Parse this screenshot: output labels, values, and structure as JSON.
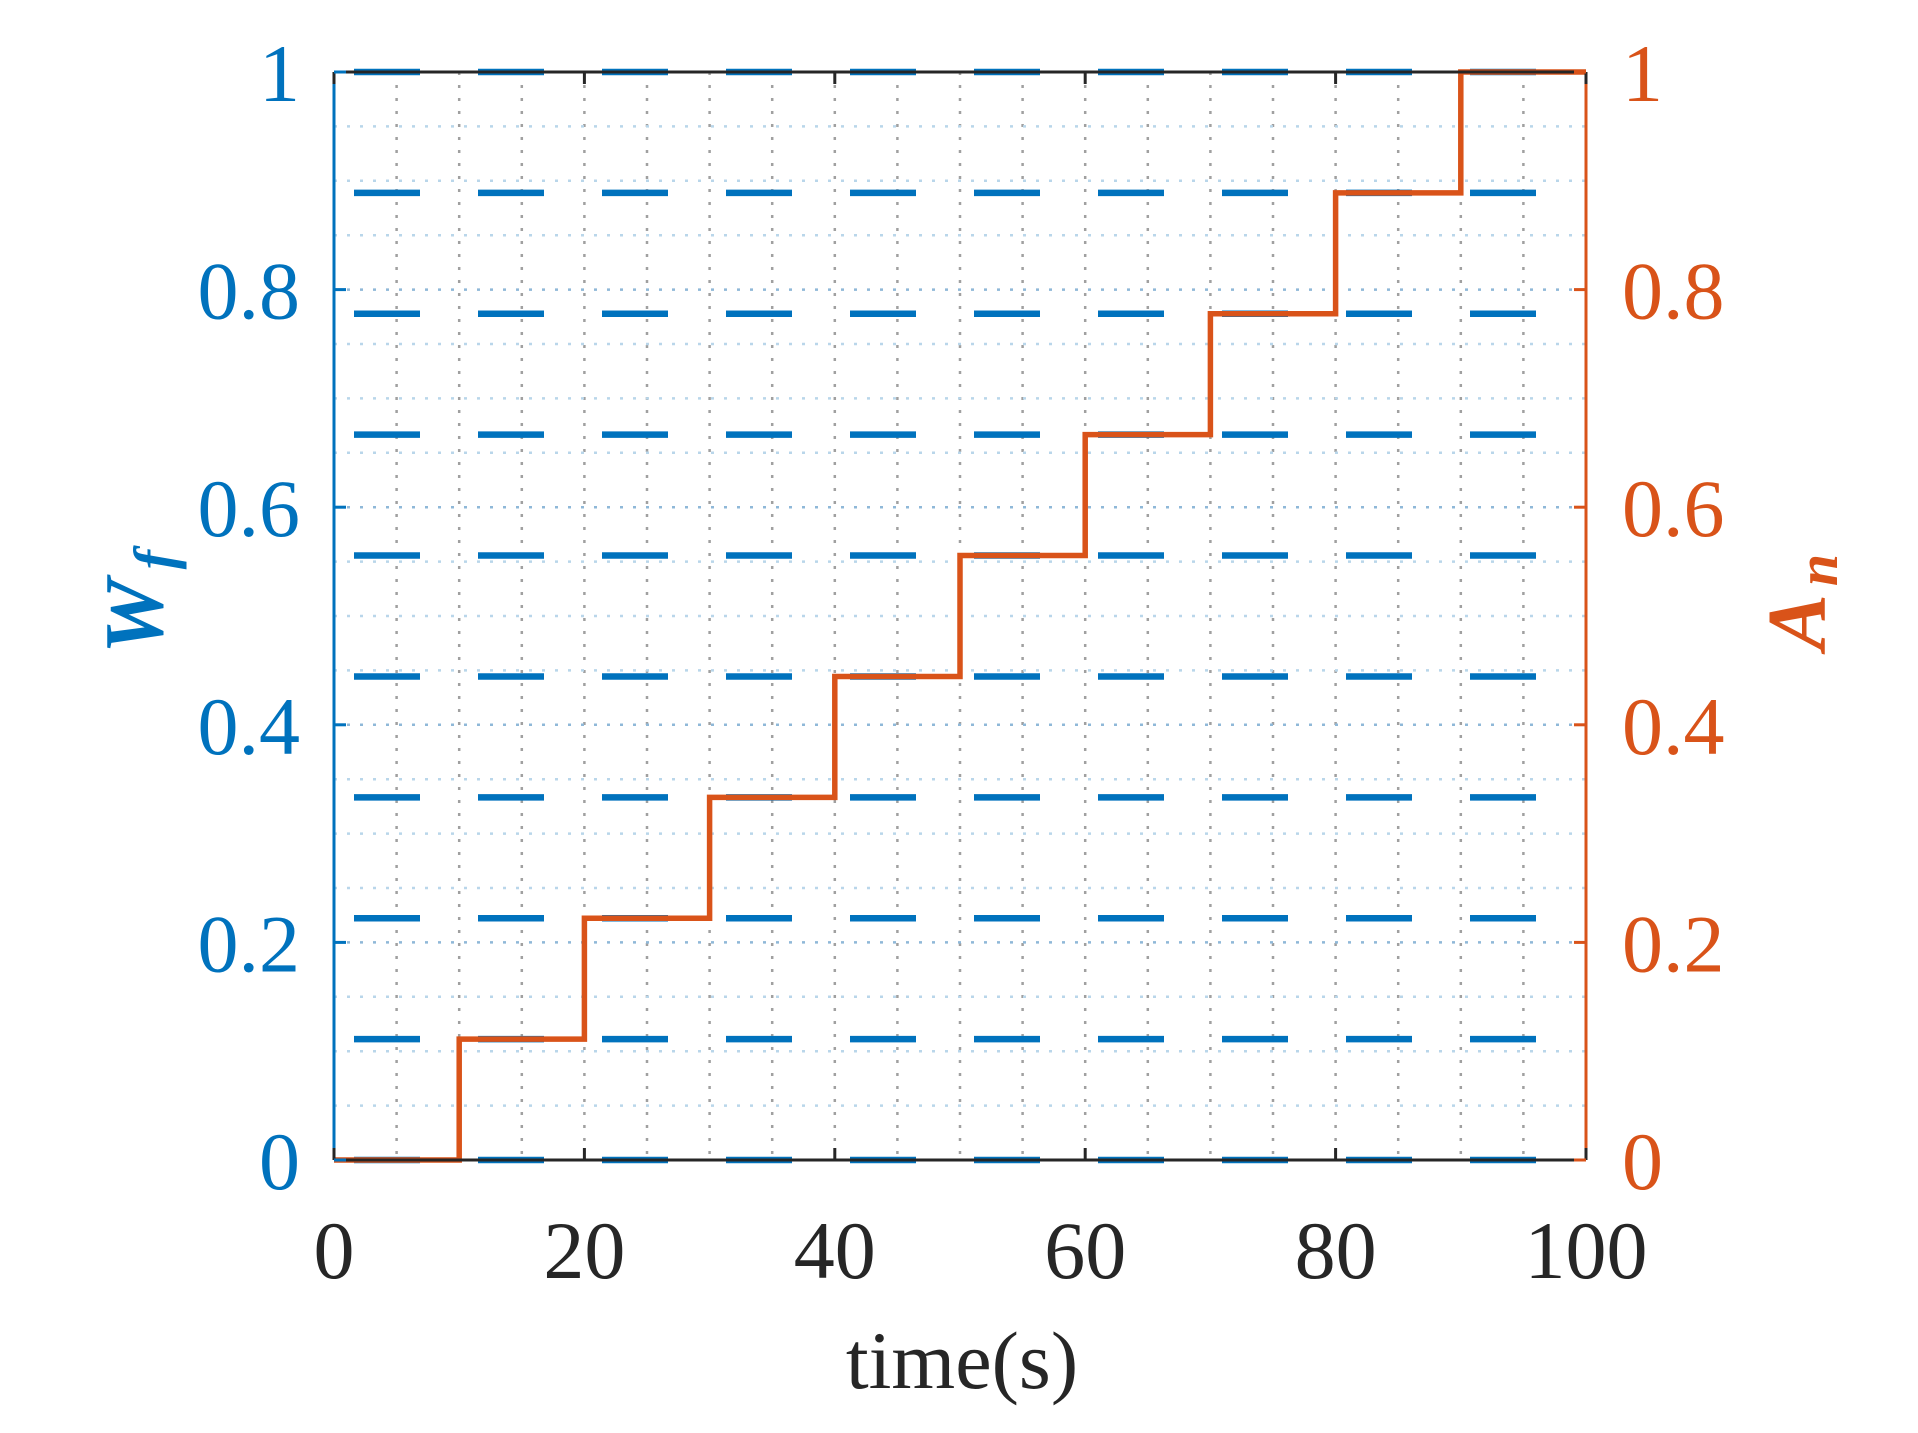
{
  "chart_data": {
    "type": "line",
    "xlabel": "time(s)",
    "xlim": [
      0,
      100
    ],
    "x_ticks": [
      "0",
      "20",
      "40",
      "60",
      "80",
      "100"
    ],
    "left_axis": {
      "label_main": "W",
      "label_sub": "f",
      "ylim": [
        0,
        1
      ],
      "ticks": [
        "0",
        "0.2",
        "0.4",
        "0.6",
        "0.8",
        "1"
      ],
      "color": "#0072BD"
    },
    "right_axis": {
      "label_main": "A",
      "label_sub": "n",
      "ylim": [
        0,
        1
      ],
      "ticks": [
        "0",
        "0.2",
        "0.4",
        "0.6",
        "0.8",
        "1"
      ],
      "color": "#D95319"
    },
    "grid": true,
    "minor_grid": true,
    "series": [
      {
        "axis": "left",
        "style": "dashed",
        "color": "#0072BD",
        "horizontal_levels": [
          0,
          0.1111,
          0.2222,
          0.3333,
          0.4444,
          0.5556,
          0.6667,
          0.7778,
          0.8889,
          1.0
        ]
      },
      {
        "axis": "right",
        "style": "stairs",
        "color": "#D95319",
        "x": [
          0,
          10,
          20,
          30,
          40,
          50,
          60,
          70,
          80,
          90,
          100
        ],
        "y": [
          0,
          0.1111,
          0.2222,
          0.3333,
          0.4444,
          0.5556,
          0.6667,
          0.7778,
          0.8889,
          1.0,
          1.0
        ]
      }
    ]
  }
}
